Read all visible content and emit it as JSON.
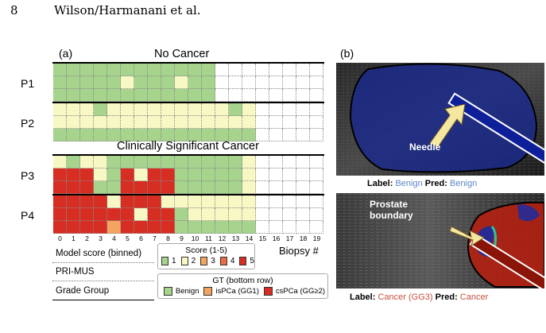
{
  "page": {
    "number": "8",
    "authors": "Wilson/Harmanani et al."
  },
  "panel_a": {
    "label": "(a)",
    "section_top": "No Cancer",
    "section_bottom": "Clinically Significant Cancer",
    "patients": [
      "P1",
      "P2",
      "P3",
      "P4"
    ],
    "x_ticks": [
      "0",
      "1",
      "2",
      "3",
      "4",
      "5",
      "6",
      "7",
      "8",
      "9",
      "10",
      "11",
      "12",
      "13",
      "14",
      "15",
      "16",
      "17",
      "18",
      "19"
    ],
    "x_label": "Biopsy #",
    "row_labels": [
      "Model score (binned)",
      "PRI-MUS",
      "Grade Group"
    ],
    "score_legend": {
      "title": "Score (1-5)",
      "items": [
        "1",
        "2",
        "3",
        "4",
        "5"
      ]
    },
    "gt_legend": {
      "title": "GT (bottom row)",
      "items": [
        "Benign",
        "isPCa (GG1)",
        "csPCa (GG≥2)"
      ]
    },
    "colors": {
      "1": "#a6d48d",
      "2": "#f8f8c5",
      "3": "#f4a460",
      "4": "#ee6a40",
      "5": "#d62e22",
      "empty": "#ffffff"
    },
    "grids": {
      "P1": [
        [
          1,
          1,
          1,
          1,
          1,
          1,
          1,
          1,
          1,
          1,
          1,
          1,
          0,
          0,
          0,
          0,
          0,
          0,
          0,
          0
        ],
        [
          1,
          1,
          1,
          1,
          1,
          2,
          1,
          1,
          1,
          2,
          1,
          1,
          0,
          0,
          0,
          0,
          0,
          0,
          0,
          0
        ],
        [
          1,
          1,
          1,
          1,
          1,
          1,
          1,
          1,
          1,
          1,
          1,
          1,
          0,
          0,
          0,
          0,
          0,
          0,
          0,
          0
        ]
      ],
      "P2": [
        [
          2,
          2,
          2,
          1,
          2,
          2,
          2,
          2,
          2,
          2,
          2,
          2,
          2,
          1,
          2,
          0,
          0,
          0,
          0,
          0
        ],
        [
          2,
          2,
          2,
          2,
          2,
          2,
          2,
          2,
          2,
          2,
          2,
          2,
          2,
          2,
          2,
          0,
          0,
          0,
          0,
          0
        ],
        [
          1,
          1,
          1,
          1,
          1,
          1,
          1,
          1,
          1,
          1,
          1,
          1,
          1,
          1,
          1,
          0,
          0,
          0,
          0,
          0
        ]
      ],
      "P3": [
        [
          2,
          1,
          2,
          2,
          1,
          1,
          1,
          1,
          1,
          1,
          1,
          1,
          1,
          1,
          2,
          0,
          0,
          0,
          0,
          0
        ],
        [
          5,
          5,
          5,
          2,
          1,
          5,
          2,
          5,
          5,
          1,
          1,
          1,
          1,
          1,
          2,
          0,
          0,
          0,
          0,
          0
        ],
        [
          5,
          5,
          5,
          1,
          1,
          5,
          5,
          5,
          5,
          1,
          1,
          1,
          1,
          1,
          2,
          0,
          0,
          0,
          0,
          0
        ]
      ],
      "P4": [
        [
          5,
          5,
          5,
          5,
          2,
          5,
          5,
          5,
          2,
          2,
          2,
          2,
          2,
          2,
          2,
          0,
          0,
          0,
          0,
          0
        ],
        [
          5,
          5,
          5,
          5,
          5,
          5,
          2,
          5,
          5,
          1,
          2,
          2,
          2,
          2,
          2,
          0,
          0,
          0,
          0,
          0
        ],
        [
          5,
          5,
          5,
          5,
          3,
          5,
          5,
          5,
          5,
          1,
          1,
          1,
          1,
          1,
          1,
          0,
          0,
          0,
          0,
          0
        ]
      ]
    }
  },
  "panel_b": {
    "label": "(b)",
    "top": {
      "annotation": "Needle",
      "caption": {
        "label_key": "Label:",
        "label_val": "Benign",
        "pred_key": "Pred:",
        "pred_val": "Benign"
      },
      "region_color": "#1a2a8c",
      "value_color": "#5b87c5"
    },
    "bottom": {
      "annotation_line1": "Prostate",
      "annotation_line2": "boundary",
      "caption": {
        "label_key": "Label:",
        "label_val": "Cancer (GG3)",
        "pred_key": "Pred:",
        "pred_val": "Cancer"
      },
      "region_color": "#b32012",
      "value_color": "#c9503f"
    }
  }
}
